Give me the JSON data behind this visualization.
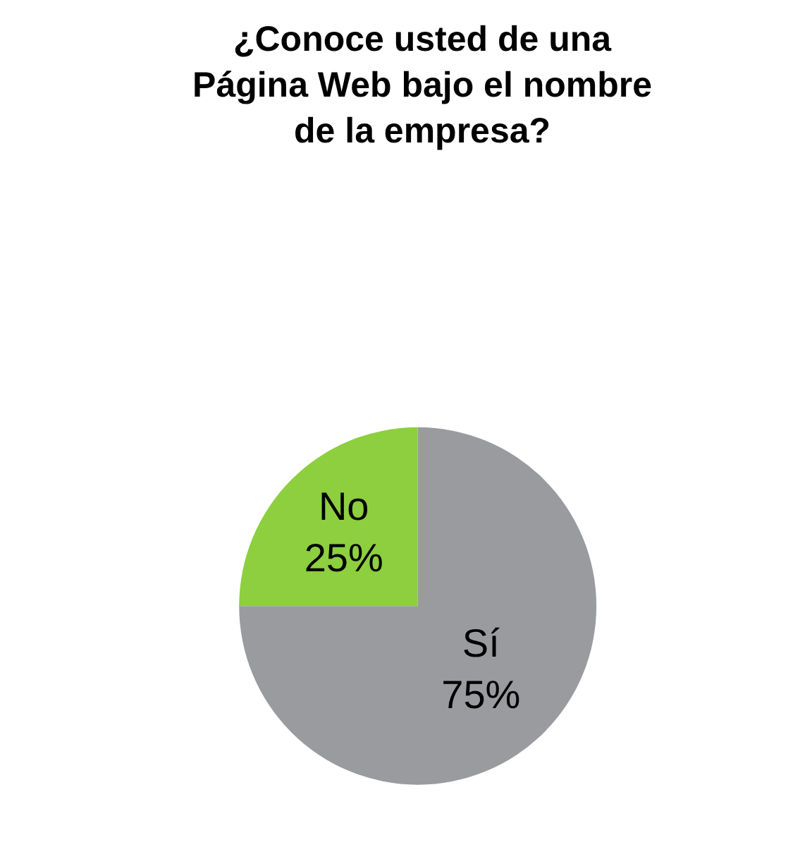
{
  "chart_data": {
    "type": "pie",
    "title": "¿Conoce usted de una Página Web bajo el nombre de la empresa?",
    "categories": [
      "Sí",
      "No"
    ],
    "values": [
      75,
      25
    ],
    "value_labels": [
      "75%",
      "25%"
    ],
    "colors": [
      "#9a9b9f",
      "#8dcf3f"
    ],
    "legend": false
  }
}
